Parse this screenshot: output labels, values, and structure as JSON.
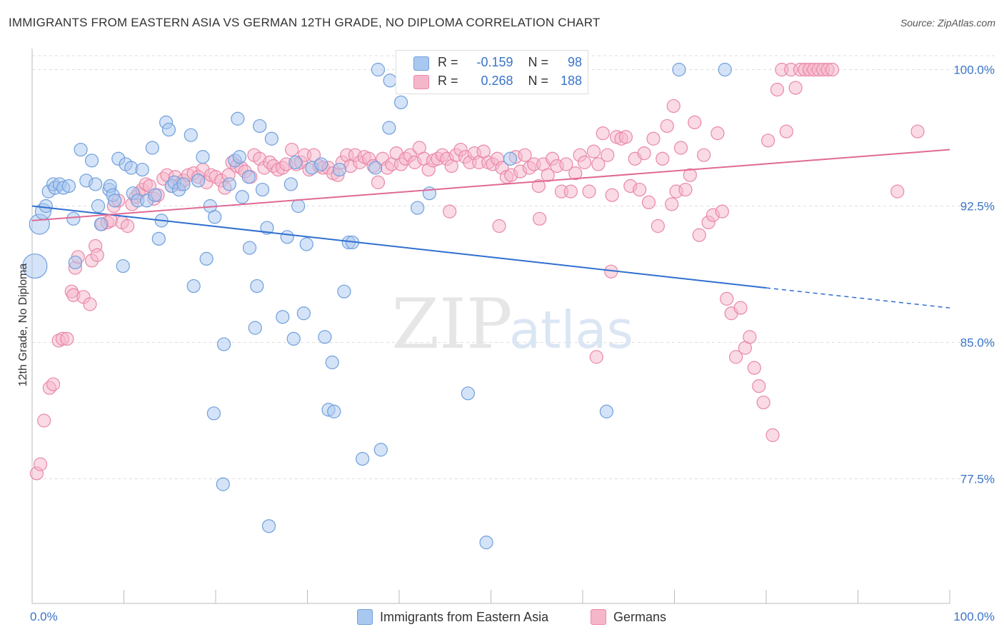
{
  "title": "IMMIGRANTS FROM EASTERN ASIA VS GERMAN 12TH GRADE, NO DIPLOMA CORRELATION CHART",
  "source": "Source: ZipAtlas.com",
  "watermark": {
    "zip": "ZIP",
    "atlas": "atlas"
  },
  "legend": {
    "series1": {
      "r_label": "R =",
      "r_value": "-0.159",
      "n_label": "N =",
      "n_value": "98"
    },
    "series2": {
      "r_label": "R =",
      "r_value": "0.268",
      "n_label": "N =",
      "n_value": "188"
    }
  },
  "colors": {
    "blue_fill": "#a9c8f0",
    "blue_stroke": "#6f9fdd",
    "blue_line": "#2f6fd0",
    "pink_fill": "#f6b6ca",
    "pink_stroke": "#e987a8",
    "pink_line": "#e06a95",
    "tick_label": "#3a74c9",
    "grid": "#dedede"
  },
  "chart_data": {
    "type": "scatter",
    "title": "IMMIGRANTS FROM EASTERN ASIA VS GERMAN 12TH GRADE, NO DIPLOMA CORRELATION CHART",
    "xlabel": "",
    "ylabel": "12th Grade, No Diploma",
    "x_range": [
      0,
      100
    ],
    "y_range": [
      71.5,
      101.5
    ],
    "x_tick_labels": [
      "0.0%",
      "100.0%"
    ],
    "y_ticks": [
      {
        "value": 100.0,
        "label": "100.0%"
      },
      {
        "value": 92.5,
        "label": "92.5%"
      },
      {
        "value": 85.0,
        "label": "85.0%"
      },
      {
        "value": 77.5,
        "label": "77.5%"
      }
    ],
    "grid": true,
    "legend_position": "bottom",
    "series": [
      {
        "name": "Immigrants from Eastern Asia",
        "color": "#a9c8f0",
        "r": -0.159,
        "n": 98,
        "trend": {
          "x0": 0,
          "y0": 92.5,
          "x1": 80,
          "y1": 88.0,
          "dash_to": 100,
          "dash_y": 86.9
        },
        "points": [
          [
            0.3,
            89.2
          ],
          [
            0.8,
            91.5
          ],
          [
            1.2,
            92.2
          ],
          [
            1.5,
            92.5
          ],
          [
            1.8,
            93.3
          ],
          [
            2.3,
            93.7
          ],
          [
            2.5,
            93.5
          ],
          [
            3.0,
            93.7
          ],
          [
            3.4,
            93.5
          ],
          [
            4.0,
            93.6
          ],
          [
            4.5,
            91.8
          ],
          [
            4.7,
            89.4
          ],
          [
            5.3,
            95.6
          ],
          [
            5.9,
            93.9
          ],
          [
            6.5,
            95.0
          ],
          [
            6.9,
            93.7
          ],
          [
            7.2,
            92.5
          ],
          [
            7.5,
            91.5
          ],
          [
            8.4,
            93.4
          ],
          [
            8.5,
            93.6
          ],
          [
            8.8,
            93.1
          ],
          [
            9.0,
            92.8
          ],
          [
            9.4,
            95.1
          ],
          [
            9.9,
            89.2
          ],
          [
            10.2,
            94.8
          ],
          [
            10.8,
            94.6
          ],
          [
            11.0,
            93.2
          ],
          [
            11.5,
            92.8
          ],
          [
            12.0,
            94.5
          ],
          [
            12.5,
            92.8
          ],
          [
            13.1,
            95.7
          ],
          [
            13.4,
            93.1
          ],
          [
            13.8,
            90.7
          ],
          [
            14.1,
            91.7
          ],
          [
            14.6,
            97.1
          ],
          [
            14.9,
            96.7
          ],
          [
            15.2,
            93.6
          ],
          [
            15.5,
            93.8
          ],
          [
            16.0,
            93.4
          ],
          [
            16.5,
            93.7
          ],
          [
            17.3,
            96.4
          ],
          [
            17.6,
            88.1
          ],
          [
            18.1,
            93.9
          ],
          [
            18.6,
            95.2
          ],
          [
            19.0,
            89.6
          ],
          [
            19.4,
            92.5
          ],
          [
            19.8,
            81.1
          ],
          [
            19.9,
            91.9
          ],
          [
            20.8,
            77.2
          ],
          [
            20.9,
            84.9
          ],
          [
            21.5,
            93.7
          ],
          [
            22.1,
            95.0
          ],
          [
            22.4,
            97.3
          ],
          [
            22.6,
            95.2
          ],
          [
            22.9,
            93.0
          ],
          [
            23.6,
            94.1
          ],
          [
            23.7,
            90.2
          ],
          [
            24.3,
            85.8
          ],
          [
            24.5,
            88.1
          ],
          [
            24.8,
            96.9
          ],
          [
            25.1,
            93.4
          ],
          [
            25.6,
            91.3
          ],
          [
            25.8,
            74.9
          ],
          [
            26.1,
            96.2
          ],
          [
            27.3,
            86.4
          ],
          [
            27.8,
            90.8
          ],
          [
            28.2,
            93.7
          ],
          [
            28.5,
            85.2
          ],
          [
            29.0,
            92.5
          ],
          [
            29.6,
            86.6
          ],
          [
            29.9,
            90.4
          ],
          [
            30.5,
            94.6
          ],
          [
            31.5,
            94.8
          ],
          [
            31.9,
            85.3
          ],
          [
            32.3,
            81.3
          ],
          [
            32.7,
            83.9
          ],
          [
            32.9,
            81.2
          ],
          [
            33.5,
            94.5
          ],
          [
            34.0,
            87.8
          ],
          [
            34.5,
            90.5
          ],
          [
            34.9,
            90.5
          ],
          [
            36.0,
            78.6
          ],
          [
            37.4,
            94.6
          ],
          [
            37.7,
            100.0
          ],
          [
            38.0,
            79.1
          ],
          [
            38.9,
            96.8
          ],
          [
            39.0,
            99.4
          ],
          [
            42.0,
            92.4
          ],
          [
            43.3,
            93.2
          ],
          [
            47.5,
            82.2
          ],
          [
            49.5,
            74.0
          ],
          [
            52.1,
            95.1
          ],
          [
            62.6,
            81.2
          ],
          [
            70.5,
            100.0
          ],
          [
            75.5,
            100.0
          ],
          [
            42.7,
            100.0
          ],
          [
            40.2,
            98.2
          ],
          [
            28.7,
            94.9
          ]
        ]
      },
      {
        "name": "Germans",
        "color": "#f6b6ca",
        "r": 0.268,
        "n": 188,
        "trend": {
          "x0": 0,
          "y0": 91.7,
          "x1": 100,
          "y1": 95.6
        },
        "points": [
          [
            0.5,
            77.8
          ],
          [
            0.9,
            78.3
          ],
          [
            1.3,
            80.7
          ],
          [
            1.9,
            82.5
          ],
          [
            2.3,
            82.7
          ],
          [
            2.9,
            85.1
          ],
          [
            3.3,
            85.2
          ],
          [
            3.8,
            85.2
          ],
          [
            4.3,
            87.8
          ],
          [
            4.5,
            87.6
          ],
          [
            4.7,
            89.1
          ],
          [
            5.0,
            89.7
          ],
          [
            5.6,
            87.5
          ],
          [
            6.3,
            87.1
          ],
          [
            6.5,
            89.5
          ],
          [
            6.9,
            90.3
          ],
          [
            7.1,
            89.8
          ],
          [
            7.6,
            91.5
          ],
          [
            8.2,
            91.6
          ],
          [
            8.6,
            91.7
          ],
          [
            8.9,
            92.5
          ],
          [
            9.4,
            92.8
          ],
          [
            9.8,
            91.6
          ],
          [
            10.4,
            91.4
          ],
          [
            10.9,
            92.6
          ],
          [
            11.3,
            93.0
          ],
          [
            11.6,
            93.2
          ],
          [
            12.0,
            93.4
          ],
          [
            12.4,
            93.7
          ],
          [
            12.8,
            93.6
          ],
          [
            13.3,
            92.9
          ],
          [
            13.7,
            93.1
          ],
          [
            14.3,
            94.0
          ],
          [
            14.7,
            94.2
          ],
          [
            15.2,
            93.6
          ],
          [
            15.6,
            94.1
          ],
          [
            16.1,
            93.7
          ],
          [
            16.5,
            93.9
          ],
          [
            17.0,
            94.2
          ],
          [
            17.6,
            94.3
          ],
          [
            18.1,
            94.1
          ],
          [
            18.6,
            94.5
          ],
          [
            19.0,
            93.8
          ],
          [
            19.5,
            94.2
          ],
          [
            20.0,
            94.1
          ],
          [
            20.6,
            93.9
          ],
          [
            21.0,
            93.5
          ],
          [
            21.4,
            94.2
          ],
          [
            21.8,
            94.9
          ],
          [
            22.3,
            94.7
          ],
          [
            22.8,
            94.6
          ],
          [
            23.2,
            94.4
          ],
          [
            23.8,
            94.1
          ],
          [
            24.2,
            95.3
          ],
          [
            24.8,
            95.1
          ],
          [
            25.3,
            94.6
          ],
          [
            25.9,
            94.9
          ],
          [
            26.3,
            94.7
          ],
          [
            26.8,
            94.5
          ],
          [
            27.3,
            94.6
          ],
          [
            27.7,
            94.8
          ],
          [
            28.3,
            95.6
          ],
          [
            28.8,
            94.8
          ],
          [
            29.3,
            94.9
          ],
          [
            29.7,
            95.3
          ],
          [
            30.2,
            94.5
          ],
          [
            30.7,
            95.3
          ],
          [
            31.3,
            94.7
          ],
          [
            31.7,
            94.6
          ],
          [
            32.3,
            94.6
          ],
          [
            32.8,
            94.3
          ],
          [
            33.3,
            94.2
          ],
          [
            33.8,
            94.9
          ],
          [
            34.3,
            95.3
          ],
          [
            34.7,
            94.7
          ],
          [
            35.2,
            95.3
          ],
          [
            35.7,
            94.9
          ],
          [
            36.2,
            95.2
          ],
          [
            36.7,
            95.1
          ],
          [
            37.2,
            94.7
          ],
          [
            37.7,
            93.8
          ],
          [
            38.2,
            95.1
          ],
          [
            38.7,
            94.6
          ],
          [
            39.2,
            94.8
          ],
          [
            39.7,
            95.4
          ],
          [
            40.2,
            94.8
          ],
          [
            40.7,
            95.1
          ],
          [
            41.2,
            95.3
          ],
          [
            41.7,
            94.9
          ],
          [
            42.2,
            95.7
          ],
          [
            42.7,
            95.1
          ],
          [
            43.2,
            94.5
          ],
          [
            43.7,
            95.0
          ],
          [
            44.2,
            95.1
          ],
          [
            44.7,
            95.3
          ],
          [
            45.2,
            95.1
          ],
          [
            45.7,
            94.7
          ],
          [
            46.2,
            95.3
          ],
          [
            46.7,
            95.6
          ],
          [
            47.2,
            95.2
          ],
          [
            47.7,
            94.9
          ],
          [
            48.2,
            95.4
          ],
          [
            48.7,
            94.9
          ],
          [
            49.2,
            95.5
          ],
          [
            49.7,
            94.9
          ],
          [
            50.2,
            94.8
          ],
          [
            50.7,
            95.1
          ],
          [
            51.2,
            94.6
          ],
          [
            51.7,
            94.1
          ],
          [
            52.2,
            94.2
          ],
          [
            52.7,
            95.2
          ],
          [
            53.2,
            94.4
          ],
          [
            53.7,
            95.3
          ],
          [
            54.2,
            94.6
          ],
          [
            54.7,
            94.8
          ],
          [
            55.2,
            93.6
          ],
          [
            55.7,
            94.8
          ],
          [
            56.2,
            94.2
          ],
          [
            56.7,
            95.1
          ],
          [
            57.2,
            94.7
          ],
          [
            57.7,
            93.3
          ],
          [
            58.2,
            94.8
          ],
          [
            58.7,
            93.3
          ],
          [
            59.2,
            94.3
          ],
          [
            59.7,
            95.3
          ],
          [
            60.2,
            94.9
          ],
          [
            60.7,
            93.3
          ],
          [
            61.2,
            95.5
          ],
          [
            61.7,
            94.8
          ],
          [
            62.2,
            96.5
          ],
          [
            62.7,
            95.3
          ],
          [
            63.2,
            93.1
          ],
          [
            63.7,
            96.3
          ],
          [
            64.2,
            96.2
          ],
          [
            64.7,
            96.3
          ],
          [
            65.2,
            93.6
          ],
          [
            65.7,
            95.1
          ],
          [
            66.2,
            93.4
          ],
          [
            66.7,
            95.4
          ],
          [
            67.2,
            92.7
          ],
          [
            67.7,
            96.2
          ],
          [
            68.2,
            91.4
          ],
          [
            68.7,
            95.1
          ],
          [
            69.2,
            96.9
          ],
          [
            69.7,
            92.6
          ],
          [
            70.2,
            93.3
          ],
          [
            70.7,
            95.7
          ],
          [
            71.2,
            93.4
          ],
          [
            71.7,
            94.2
          ],
          [
            72.2,
            97.1
          ],
          [
            72.7,
            90.9
          ],
          [
            73.2,
            95.3
          ],
          [
            73.7,
            91.6
          ],
          [
            74.2,
            92.0
          ],
          [
            74.7,
            96.5
          ],
          [
            75.2,
            92.2
          ],
          [
            75.7,
            87.4
          ],
          [
            76.2,
            86.6
          ],
          [
            76.7,
            84.2
          ],
          [
            77.2,
            86.9
          ],
          [
            77.7,
            84.7
          ],
          [
            78.2,
            85.3
          ],
          [
            78.7,
            83.6
          ],
          [
            79.2,
            82.6
          ],
          [
            79.7,
            81.7
          ],
          [
            80.2,
            96.1
          ],
          [
            80.7,
            79.9
          ],
          [
            81.2,
            98.9
          ],
          [
            81.7,
            100.0
          ],
          [
            82.2,
            96.6
          ],
          [
            82.7,
            100.0
          ],
          [
            83.2,
            99.0
          ],
          [
            83.7,
            100.0
          ],
          [
            84.2,
            100.0
          ],
          [
            84.7,
            100.0
          ],
          [
            85.2,
            100.0
          ],
          [
            85.7,
            100.0
          ],
          [
            86.2,
            100.0
          ],
          [
            86.7,
            100.0
          ],
          [
            87.2,
            100.0
          ],
          [
            94.3,
            93.3
          ],
          [
            96.5,
            96.6
          ],
          [
            61.5,
            84.2
          ],
          [
            63.1,
            88.9
          ],
          [
            69.9,
            98.0
          ],
          [
            55.3,
            91.8
          ],
          [
            50.9,
            91.4
          ],
          [
            45.5,
            92.2
          ]
        ]
      }
    ]
  },
  "bottom_legend": {
    "item1": "Immigrants from Eastern Asia",
    "item2": "Germans"
  }
}
